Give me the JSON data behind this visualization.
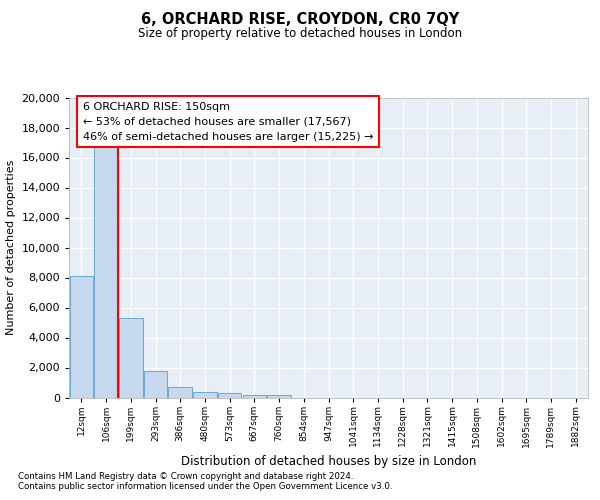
{
  "title1": "6, ORCHARD RISE, CROYDON, CR0 7QY",
  "title2": "Size of property relative to detached houses in London",
  "xlabel": "Distribution of detached houses by size in London",
  "ylabel": "Number of detached properties",
  "footnote1": "Contains HM Land Registry data © Crown copyright and database right 2024.",
  "footnote2": "Contains public sector information licensed under the Open Government Licence v3.0.",
  "bar_color": "#c5d8ee",
  "bar_edge_color": "#6aaad4",
  "annotation_text": "6 ORCHARD RISE: 150sqm\n← 53% of detached houses are smaller (17,567)\n46% of semi-detached houses are larger (15,225) →",
  "annotation_box_color": "white",
  "annotation_box_edge": "red",
  "bin_labels": [
    "12sqm",
    "106sqm",
    "199sqm",
    "293sqm",
    "386sqm",
    "480sqm",
    "573sqm",
    "667sqm",
    "760sqm",
    "854sqm",
    "947sqm",
    "1041sqm",
    "1134sqm",
    "1228sqm",
    "1321sqm",
    "1415sqm",
    "1508sqm",
    "1602sqm",
    "1695sqm",
    "1789sqm",
    "1882sqm"
  ],
  "values": [
    8100,
    16700,
    5300,
    1750,
    680,
    370,
    280,
    200,
    155,
    0,
    0,
    0,
    0,
    0,
    0,
    0,
    0,
    0,
    0,
    0,
    0
  ],
  "red_line_x": 1.5,
  "ylim": [
    0,
    20000
  ],
  "yticks": [
    0,
    2000,
    4000,
    6000,
    8000,
    10000,
    12000,
    14000,
    16000,
    18000,
    20000
  ],
  "bg_color": "#e8eef5",
  "grid_color": "white",
  "n_bins": 21
}
